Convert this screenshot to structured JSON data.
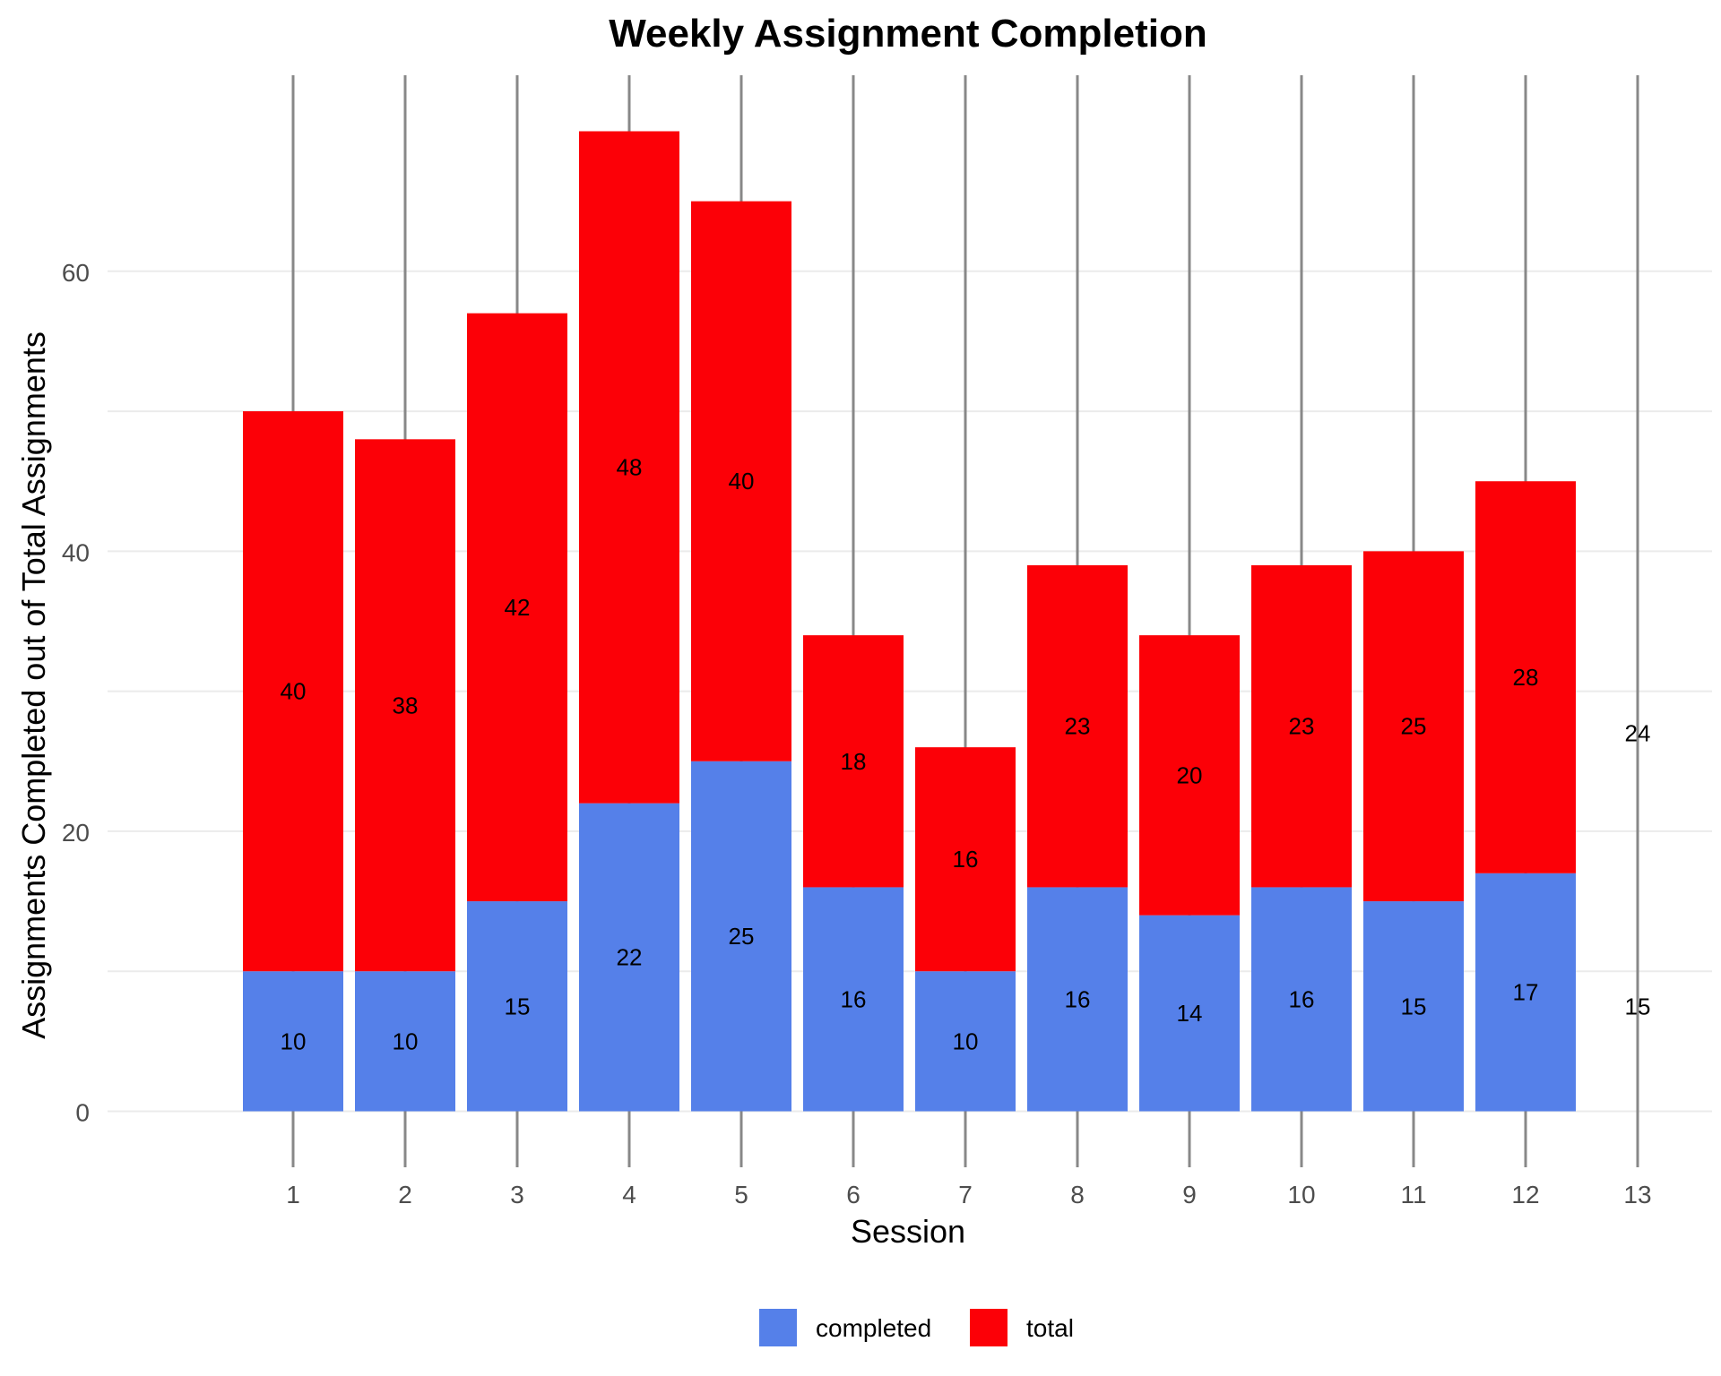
{
  "chart_data": {
    "type": "bar",
    "stacked": true,
    "title": "Weekly Assignment Completion",
    "xlabel": "Session",
    "ylabel": "Assignments Completed out of Total Assignments",
    "categories": [
      "1",
      "2",
      "3",
      "4",
      "5",
      "6",
      "7",
      "8",
      "9",
      "10",
      "11",
      "12",
      "13"
    ],
    "series": [
      {
        "name": "completed",
        "color": "#5580E9",
        "values": [
          10,
          10,
          15,
          22,
          25,
          16,
          10,
          16,
          14,
          16,
          15,
          17,
          15
        ]
      },
      {
        "name": "total",
        "color": "#FC0007",
        "values": [
          40,
          38,
          42,
          48,
          40,
          18,
          16,
          23,
          20,
          23,
          25,
          28,
          24
        ]
      }
    ],
    "bars_drawn": [
      true,
      true,
      true,
      true,
      true,
      true,
      true,
      true,
      true,
      true,
      true,
      true,
      false
    ],
    "ylim": [
      -4,
      74
    ],
    "yticks": [
      0,
      20,
      40,
      60
    ],
    "grid": true,
    "legend_position": "bottom",
    "error_bar_color": "#888888"
  }
}
